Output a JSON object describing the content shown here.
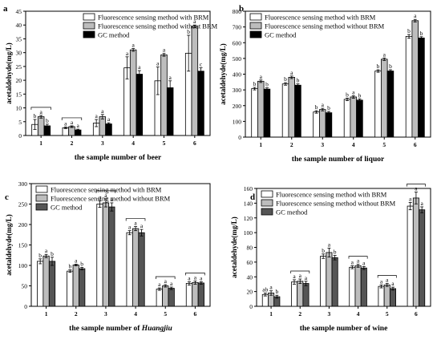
{
  "chart_data": [
    {
      "type": "bar",
      "panel_label": "a",
      "categories": [
        "1",
        "2",
        "3",
        "4",
        "5",
        "6"
      ],
      "xlabel_prefix": "the sample number of ",
      "xlabel_term": "beer",
      "xlabel_term_italic": false,
      "ylabel": "acetaldehyde(mg/L)",
      "ylim": [
        0,
        45
      ],
      "yticks": [
        0,
        5,
        10,
        15,
        20,
        25,
        30,
        35,
        40,
        45
      ],
      "legend_position": "top-right",
      "series": [
        {
          "name": "Fluorescence sensing method with BRM",
          "color": "#ffffff",
          "values": [
            4.0,
            2.8,
            4.5,
            24.5,
            19.8,
            29.8
          ],
          "errors": [
            1.8,
            0.3,
            1.3,
            4.0,
            5.0,
            6.5
          ]
        },
        {
          "name": "Fluorescence sensing method without BRM",
          "color": "#bdbdbd",
          "values": [
            6.8,
            3.2,
            6.8,
            31.0,
            29.2,
            39.5
          ],
          "errors": [
            0.5,
            0.3,
            0.8,
            0.5,
            0.5,
            0.5
          ]
        },
        {
          "name": "GC method",
          "color": "#000000",
          "values": [
            3.5,
            2.0,
            4.2,
            22.2,
            17.3,
            23.3
          ],
          "errors": [
            0.6,
            0.3,
            0.4,
            1.3,
            2.5,
            1.2
          ]
        }
      ],
      "letters": [
        [
          "b",
          "a",
          "b"
        ],
        [
          "a",
          "a",
          "a"
        ],
        [
          "a",
          "a",
          "a"
        ],
        [
          "a",
          "a",
          "a"
        ],
        [
          "a",
          "a",
          "a"
        ],
        [
          "b",
          "a",
          "c"
        ]
      ],
      "brackets": [
        1,
        2
      ]
    },
    {
      "type": "bar",
      "panel_label": "b",
      "categories": [
        "1",
        "2",
        "3",
        "4",
        "5",
        "6"
      ],
      "xlabel_prefix": "the sample number of ",
      "xlabel_term": "liquor",
      "xlabel_term_italic": false,
      "ylabel": "acetaldehyde(mg/L)",
      "ylim": [
        0,
        800
      ],
      "yticks": [
        0,
        100,
        200,
        300,
        400,
        500,
        600,
        700,
        800
      ],
      "legend_position": "top-left",
      "series": [
        {
          "name": "Fluorescence sensing method with BRM",
          "color": "#ffffff",
          "values": [
            308,
            338,
            160,
            240,
            420,
            640
          ],
          "errors": [
            8,
            8,
            8,
            8,
            8,
            12
          ]
        },
        {
          "name": "Fluorescence sensing method without BRM",
          "color": "#bdbdbd",
          "values": [
            355,
            380,
            175,
            255,
            495,
            740
          ],
          "errors": [
            8,
            8,
            8,
            8,
            8,
            8
          ]
        },
        {
          "name": "GC method",
          "color": "#000000",
          "values": [
            305,
            330,
            155,
            235,
            420,
            630
          ],
          "errors": [
            8,
            8,
            8,
            8,
            8,
            8
          ]
        }
      ],
      "letters": [
        [
          "b",
          "a",
          "b"
        ],
        [
          "b",
          "a",
          "b"
        ],
        [
          "b",
          "a",
          "b"
        ],
        [
          "b",
          "a",
          "b"
        ],
        [
          "b",
          "a",
          "b"
        ],
        [
          "b",
          "a",
          "b"
        ]
      ],
      "brackets": []
    },
    {
      "type": "bar",
      "panel_label": "c",
      "categories": [
        "1",
        "2",
        "3",
        "4",
        "5",
        "6"
      ],
      "xlabel_prefix": "the sample number of ",
      "xlabel_term": "Huangjiu",
      "xlabel_term_italic": true,
      "ylabel": "acetaldehyde(mg/L)",
      "ylim": [
        0,
        300
      ],
      "yticks": [
        0,
        50,
        100,
        150,
        200,
        250,
        300
      ],
      "legend_position": "top-left",
      "series": [
        {
          "name": "Fluorescence sensing method with BRM",
          "color": "#ffffff",
          "values": [
            110,
            86,
            250,
            180,
            42,
            56
          ],
          "errors": [
            6,
            3,
            8,
            5,
            3,
            4
          ]
        },
        {
          "name": "Fluorescence sensing method without BRM",
          "color": "#bdbdbd",
          "values": [
            123,
            101,
            253,
            190,
            50,
            58
          ],
          "errors": [
            4,
            2,
            10,
            5,
            3,
            4
          ]
        },
        {
          "name": "GC method",
          "color": "#555555",
          "values": [
            110,
            92,
            243,
            180,
            44,
            57
          ],
          "errors": [
            10,
            3,
            10,
            8,
            3,
            3
          ]
        }
      ],
      "letters": [
        [
          "b",
          "a",
          "b"
        ],
        [
          "b",
          "a",
          "b"
        ],
        [
          "a",
          "a",
          "a"
        ],
        [
          "a",
          "a",
          "a"
        ],
        [
          "a",
          "a",
          "a"
        ],
        [
          "a",
          "a",
          "a"
        ]
      ],
      "brackets": [
        3,
        4,
        5,
        6
      ]
    },
    {
      "type": "bar",
      "panel_label": "d",
      "categories": [
        "1",
        "2",
        "3",
        "4",
        "5",
        "6"
      ],
      "xlabel_prefix": "the sample number of ",
      "xlabel_term": "wine",
      "xlabel_term_italic": false,
      "ylabel": "acetaldehyde(mg/L)",
      "ylim": [
        0,
        160
      ],
      "yticks": [
        0,
        20,
        40,
        60,
        80,
        100,
        120,
        140,
        160
      ],
      "legend_position": "top-left",
      "series": [
        {
          "name": "Fluorescence sensing method with BRM",
          "color": "#ffffff",
          "values": [
            16,
            33,
            68,
            53,
            27,
            136
          ],
          "errors": [
            2,
            3,
            3,
            2,
            2,
            5
          ]
        },
        {
          "name": "Fluorescence sensing method without BRM",
          "color": "#bdbdbd",
          "values": [
            18,
            34,
            73,
            55,
            29,
            147
          ],
          "errors": [
            3,
            3,
            6,
            2,
            2,
            8
          ]
        },
        {
          "name": "GC method",
          "color": "#555555",
          "values": [
            13,
            31,
            66,
            52,
            24,
            131
          ],
          "errors": [
            2,
            3,
            3,
            2,
            2,
            4
          ]
        }
      ],
      "letters": [
        [
          "ab",
          "a",
          "b"
        ],
        [
          "a",
          "a",
          "a"
        ],
        [
          "b",
          "a",
          "b"
        ],
        [
          "a",
          "a",
          "a"
        ],
        [
          "a",
          "a",
          "a"
        ],
        [
          "a",
          "a",
          "a"
        ]
      ],
      "brackets": [
        2,
        4,
        5,
        6
      ]
    }
  ]
}
